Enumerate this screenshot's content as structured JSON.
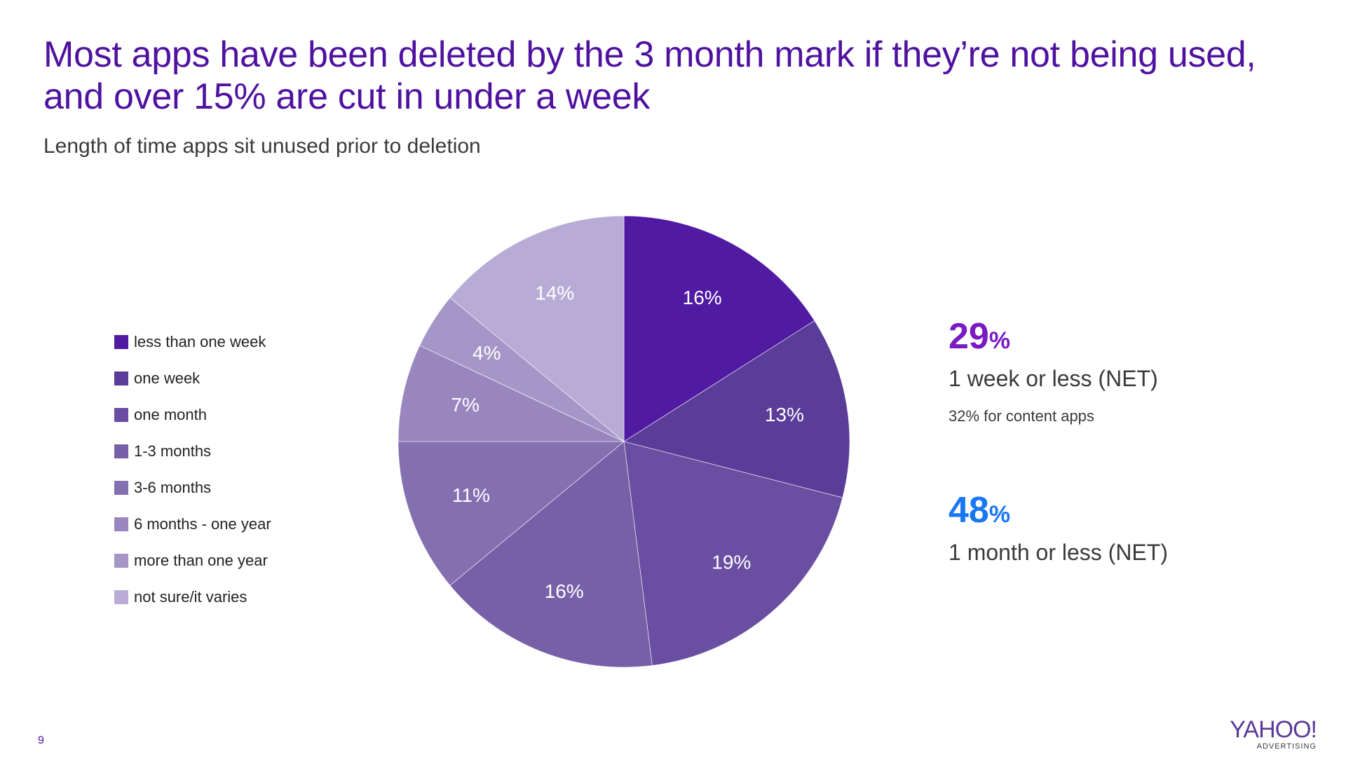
{
  "slide": {
    "title_line1": "Most apps have been deleted by the 3 month mark if they’re not being used,",
    "title_line2": "and over 15% are cut in under a week",
    "subtitle": "Length of time apps sit unused prior to deletion",
    "page_number": "9",
    "logo_main": "YAHOO!",
    "logo_sub": "ADVERTISING"
  },
  "callouts": {
    "first": {
      "value": "29",
      "unit": "%",
      "label": "1 week or less (NET)",
      "note": "32% for content apps",
      "color": "#7a1bc2"
    },
    "second": {
      "value": "48",
      "unit": "%",
      "label": "1 month or less (NET)",
      "color": "#1877f2"
    }
  },
  "chart_data": {
    "type": "pie",
    "title": "Length of time apps sit unused prior to deletion",
    "legend_position": "left",
    "categories": [
      "less than one week",
      "one week",
      "one month",
      "1-3 months",
      "3-6 months",
      "6 months - one year",
      "more than one year",
      "not sure/it varies"
    ],
    "values": [
      16,
      13,
      19,
      16,
      11,
      7,
      4,
      14
    ],
    "labels": [
      "16%",
      "13%",
      "19%",
      "16%",
      "11%",
      "7%",
      "4%",
      "14%"
    ],
    "colors": [
      "#501aa3",
      "#5a3c99",
      "#6a4ea1",
      "#7860a8",
      "#8470b0",
      "#9986bf",
      "#a596c7",
      "#b8acd6"
    ]
  }
}
